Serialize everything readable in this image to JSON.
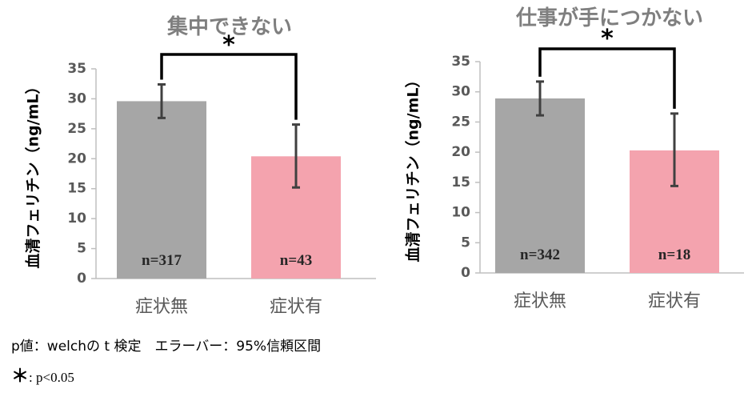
{
  "chart_data": [
    {
      "type": "bar",
      "title": "集中できない",
      "ylabel": "血清フェリチン（ng/mL）",
      "xlabel": "",
      "ylim": [
        0,
        35
      ],
      "yticks": [
        0,
        5,
        10,
        15,
        20,
        25,
        30,
        35
      ],
      "categories": [
        "症状無",
        "症状有"
      ],
      "values": [
        29.6,
        20.4
      ],
      "error_low": [
        26.8,
        15.2
      ],
      "error_high": [
        32.4,
        25.7
      ],
      "n_labels": [
        "n=317",
        "n=43"
      ],
      "colors": [
        "#a6a6a6",
        "#f4a3ae"
      ],
      "significance": "*",
      "grid": false
    },
    {
      "type": "bar",
      "title": "仕事が手につかない",
      "ylabel": "血清フェリチン（ng/mL）",
      "xlabel": "",
      "ylim": [
        0,
        35
      ],
      "yticks": [
        0,
        5,
        10,
        15,
        20,
        25,
        30,
        35
      ],
      "categories": [
        "症状無",
        "症状有"
      ],
      "values": [
        28.9,
        20.3
      ],
      "error_low": [
        26.1,
        14.4
      ],
      "error_high": [
        31.7,
        26.4
      ],
      "n_labels": [
        "n=342",
        "n=18"
      ],
      "colors": [
        "#a6a6a6",
        "#f4a3ae"
      ],
      "significance": "*",
      "grid": false
    }
  ],
  "notes": {
    "line1": "p値：welchの t 検定　エラーバー：95%信頼区間",
    "line2_star": "＊",
    "line2_text": ": p<0.05"
  }
}
